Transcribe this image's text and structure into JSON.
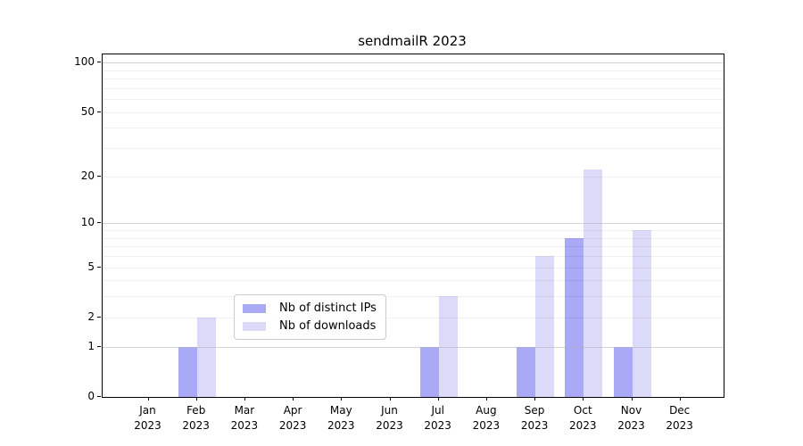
{
  "title": "sendmailR 2023",
  "chart_data": {
    "type": "bar",
    "title": "sendmailR 2023",
    "categories": [
      "Jan",
      "Feb",
      "Mar",
      "Apr",
      "May",
      "Jun",
      "Jul",
      "Aug",
      "Sep",
      "Oct",
      "Nov",
      "Dec"
    ],
    "x_tick_year": "2023",
    "series": [
      {
        "name": "Nb of distinct IPs",
        "color": "#a9a9f6",
        "values": [
          0,
          1,
          0,
          0,
          0,
          0,
          1,
          0,
          1,
          8,
          1,
          0
        ]
      },
      {
        "name": "Nb of downloads",
        "color": "#dbdbf9",
        "values": [
          0,
          2,
          0,
          0,
          0,
          0,
          3,
          0,
          6,
          22,
          9,
          0
        ]
      }
    ],
    "yscale": "log10(x+1)",
    "ylim": [
      0,
      112
    ],
    "y_tick_labels": [
      100,
      50,
      20,
      10,
      5,
      2,
      1,
      0
    ],
    "y_major_gridlines": [
      1,
      10,
      100
    ],
    "y_minor_gridlines": [
      2,
      3,
      4,
      5,
      6,
      7,
      8,
      9,
      20,
      30,
      40,
      50,
      60,
      70,
      80,
      90
    ],
    "grid": "on",
    "legend_position": "lower-center-inside"
  },
  "legend": {
    "items": [
      {
        "label": "Nb of distinct IPs",
        "color": "#a9a9f6"
      },
      {
        "label": "Nb of downloads",
        "color": "#dbdbf9"
      }
    ]
  },
  "colors": {
    "background": "#ffffff",
    "spine": "#000000",
    "major_grid": "#c9c9c9",
    "minor_grid": "#ebebeb",
    "bar_dark": "#a9a9f6",
    "bar_light": "#dbdbf9",
    "legend_border": "#cccccc"
  }
}
